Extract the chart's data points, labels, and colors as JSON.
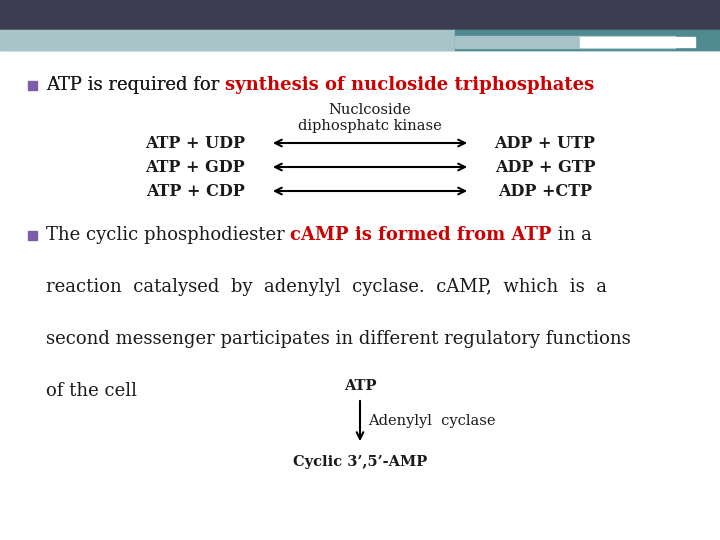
{
  "background_color": "#ffffff",
  "header_dark_color": "#3d3d52",
  "header_teal_color": "#4e8a90",
  "header_light_color": "#a8c4c8",
  "bullet_color": "#7b5ea7",
  "bullet1_black": "ATP is required for ",
  "bullet1_red": "synthesis of nucloside triphosphates",
  "diag1_label": "Nuclcoside\ndiphosphatc kinase",
  "rxn1_left": "ATP + UDP",
  "rxn1_right": "ADP + UTP",
  "rxn2_left": "ATP + GDP",
  "rxn2_right": "ADP + GTP",
  "rxn3_left": "ATP + CDP",
  "rxn3_right": "ADP +CTP",
  "bullet2_black1": "The cyclic phosphodiester ",
  "bullet2_red": "cAMP is formed from ATP",
  "bullet2_black2": " in a",
  "bullet2_line2": "reaction  catalysed  by  adenylyl  cyclase.  cAMP,  which  is  a",
  "bullet2_line3": "second messenger participates in different regulatory functions",
  "bullet2_line4": "of the cell",
  "diag2_atp": "ATP",
  "diag2_enzyme": "Adenylyl  cyclase",
  "diag2_product": "Cyclic 3’,5’-AMP",
  "red_color": "#cc0000",
  "black_color": "#1a1a1a",
  "fs_bullet": 13,
  "fs_rxn": 11.5,
  "fs_diag": 10.5
}
